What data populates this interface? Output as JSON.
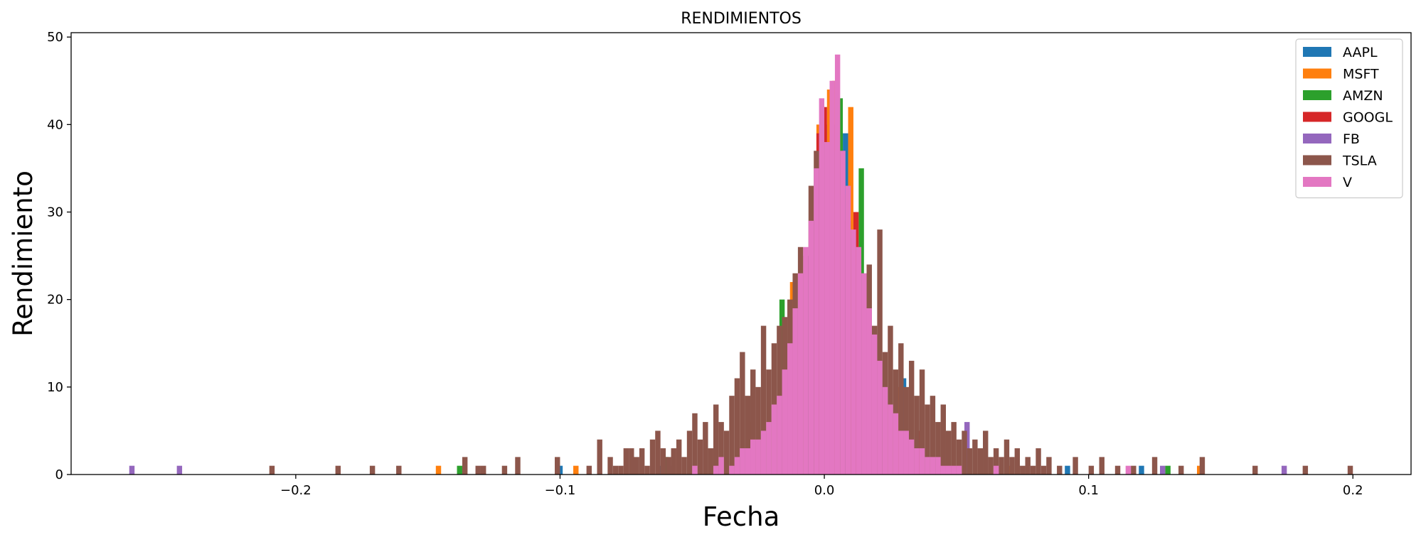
{
  "chart_data": {
    "type": "bar",
    "subtype": "overlaid histogram",
    "title": "RENDIMIENTOS",
    "xlabel": "Fecha",
    "ylabel": "Rendimiento",
    "xlim": [
      -0.285,
      0.222
    ],
    "ylim": [
      0,
      50.5
    ],
    "xticks": [
      -0.2,
      -0.1,
      0.0,
      0.1,
      0.2
    ],
    "xtick_labels": [
      "−0.2",
      "−0.1",
      "0.0",
      "0.1",
      "0.2"
    ],
    "yticks": [
      0,
      10,
      20,
      30,
      40,
      50
    ],
    "ytick_labels": [
      "0",
      "10",
      "20",
      "30",
      "40",
      "50"
    ],
    "grid": false,
    "legend_position": "top-right",
    "bin_width": 0.002,
    "series": [
      {
        "name": "AAPL",
        "color": "#1f77b4",
        "bins": [
          [
            -0.1,
            1
          ],
          [
            -0.062,
            1
          ],
          [
            -0.016,
            15
          ],
          [
            -0.006,
            25
          ],
          [
            0.0,
            40
          ],
          [
            0.008,
            39
          ],
          [
            0.03,
            11
          ],
          [
            0.092,
            1
          ],
          [
            0.12,
            1
          ]
        ]
      },
      {
        "name": "MSFT",
        "color": "#ff7f0e",
        "bins": [
          [
            -0.146,
            1
          ],
          [
            -0.094,
            1
          ],
          [
            -0.028,
            6
          ],
          [
            -0.012,
            22
          ],
          [
            -0.002,
            40
          ],
          [
            0.002,
            44
          ],
          [
            0.004,
            45
          ],
          [
            0.01,
            42
          ],
          [
            0.028,
            10
          ],
          [
            0.07,
            1
          ],
          [
            0.142,
            1
          ]
        ]
      },
      {
        "name": "AMZN",
        "color": "#2ca02c",
        "bins": [
          [
            -0.138,
            1
          ],
          [
            -0.06,
            2
          ],
          [
            -0.016,
            20
          ],
          [
            -0.004,
            29
          ],
          [
            0.006,
            43
          ],
          [
            0.014,
            35
          ],
          [
            0.022,
            13
          ],
          [
            0.13,
            1
          ]
        ]
      },
      {
        "name": "GOOGL",
        "color": "#d62728",
        "bins": [
          [
            -0.012,
            18
          ],
          [
            -0.002,
            39
          ],
          [
            0.0,
            42
          ],
          [
            0.004,
            40
          ],
          [
            0.012,
            30
          ],
          [
            0.036,
            5
          ]
        ]
      },
      {
        "name": "FB",
        "color": "#9467bd",
        "bins": [
          [
            -0.262,
            1
          ],
          [
            -0.244,
            1
          ],
          [
            -0.058,
            1
          ],
          [
            0.054,
            6
          ],
          [
            0.128,
            1
          ],
          [
            0.174,
            1
          ]
        ]
      },
      {
        "name": "TSLA",
        "color": "#8c564b",
        "bins": [
          [
            -0.209,
            1
          ],
          [
            -0.184,
            1
          ],
          [
            -0.171,
            1
          ],
          [
            -0.161,
            1
          ],
          [
            -0.136,
            2
          ],
          [
            -0.131,
            1
          ],
          [
            -0.129,
            1
          ],
          [
            -0.121,
            1
          ],
          [
            -0.116,
            2
          ],
          [
            -0.101,
            2
          ],
          [
            -0.089,
            1
          ],
          [
            -0.085,
            4
          ],
          [
            -0.081,
            2
          ],
          [
            -0.079,
            1
          ],
          [
            -0.077,
            1
          ],
          [
            -0.075,
            3
          ],
          [
            -0.073,
            3
          ],
          [
            -0.071,
            2
          ],
          [
            -0.069,
            3
          ],
          [
            -0.067,
            1
          ],
          [
            -0.065,
            4
          ],
          [
            -0.063,
            5
          ],
          [
            -0.061,
            3
          ],
          [
            -0.059,
            2
          ],
          [
            -0.057,
            3
          ],
          [
            -0.055,
            4
          ],
          [
            -0.053,
            2
          ],
          [
            -0.051,
            5
          ],
          [
            -0.049,
            7
          ],
          [
            -0.047,
            4
          ],
          [
            -0.045,
            6
          ],
          [
            -0.043,
            3
          ],
          [
            -0.041,
            8
          ],
          [
            -0.039,
            6
          ],
          [
            -0.037,
            5
          ],
          [
            -0.035,
            9
          ],
          [
            -0.033,
            11
          ],
          [
            -0.031,
            14
          ],
          [
            -0.029,
            9
          ],
          [
            -0.027,
            12
          ],
          [
            -0.025,
            10
          ],
          [
            -0.023,
            17
          ],
          [
            -0.021,
            12
          ],
          [
            -0.019,
            15
          ],
          [
            -0.017,
            17
          ],
          [
            -0.015,
            18
          ],
          [
            -0.013,
            20
          ],
          [
            -0.011,
            23
          ],
          [
            -0.009,
            26
          ],
          [
            -0.007,
            25
          ],
          [
            -0.005,
            33
          ],
          [
            -0.003,
            37
          ],
          [
            -0.001,
            39
          ],
          [
            0.001,
            38
          ],
          [
            0.003,
            37
          ],
          [
            0.005,
            36
          ],
          [
            0.007,
            32
          ],
          [
            0.009,
            29
          ],
          [
            0.011,
            27
          ],
          [
            0.013,
            24
          ],
          [
            0.015,
            21
          ],
          [
            0.017,
            24
          ],
          [
            0.019,
            17
          ],
          [
            0.021,
            28
          ],
          [
            0.023,
            14
          ],
          [
            0.025,
            17
          ],
          [
            0.027,
            12
          ],
          [
            0.029,
            15
          ],
          [
            0.031,
            10
          ],
          [
            0.033,
            13
          ],
          [
            0.035,
            9
          ],
          [
            0.037,
            12
          ],
          [
            0.039,
            8
          ],
          [
            0.041,
            9
          ],
          [
            0.043,
            6
          ],
          [
            0.045,
            8
          ],
          [
            0.047,
            5
          ],
          [
            0.049,
            6
          ],
          [
            0.051,
            4
          ],
          [
            0.053,
            5
          ],
          [
            0.055,
            3
          ],
          [
            0.057,
            4
          ],
          [
            0.059,
            3
          ],
          [
            0.061,
            5
          ],
          [
            0.063,
            2
          ],
          [
            0.065,
            3
          ],
          [
            0.067,
            2
          ],
          [
            0.069,
            4
          ],
          [
            0.071,
            2
          ],
          [
            0.073,
            3
          ],
          [
            0.075,
            1
          ],
          [
            0.077,
            2
          ],
          [
            0.079,
            1
          ],
          [
            0.081,
            3
          ],
          [
            0.083,
            1
          ],
          [
            0.085,
            2
          ],
          [
            0.089,
            1
          ],
          [
            0.095,
            2
          ],
          [
            0.101,
            1
          ],
          [
            0.105,
            2
          ],
          [
            0.111,
            1
          ],
          [
            0.117,
            1
          ],
          [
            0.125,
            2
          ],
          [
            0.135,
            1
          ],
          [
            0.143,
            2
          ],
          [
            0.163,
            1
          ],
          [
            0.182,
            1
          ],
          [
            0.199,
            1
          ]
        ]
      },
      {
        "name": "V",
        "color": "#e377c2",
        "bins": [
          [
            -0.049,
            1
          ],
          [
            -0.041,
            1
          ],
          [
            -0.039,
            2
          ],
          [
            -0.035,
            1
          ],
          [
            -0.033,
            2
          ],
          [
            -0.031,
            3
          ],
          [
            -0.029,
            3
          ],
          [
            -0.027,
            4
          ],
          [
            -0.025,
            4
          ],
          [
            -0.023,
            5
          ],
          [
            -0.021,
            6
          ],
          [
            -0.019,
            8
          ],
          [
            -0.017,
            9
          ],
          [
            -0.015,
            12
          ],
          [
            -0.013,
            15
          ],
          [
            -0.011,
            19
          ],
          [
            -0.009,
            23
          ],
          [
            -0.007,
            26
          ],
          [
            -0.005,
            29
          ],
          [
            -0.003,
            35
          ],
          [
            -0.001,
            43
          ],
          [
            0.001,
            38
          ],
          [
            0.003,
            45
          ],
          [
            0.005,
            48
          ],
          [
            0.007,
            37
          ],
          [
            0.009,
            33
          ],
          [
            0.011,
            28
          ],
          [
            0.013,
            26
          ],
          [
            0.015,
            23
          ],
          [
            0.017,
            19
          ],
          [
            0.019,
            16
          ],
          [
            0.021,
            13
          ],
          [
            0.023,
            10
          ],
          [
            0.025,
            8
          ],
          [
            0.027,
            7
          ],
          [
            0.029,
            5
          ],
          [
            0.031,
            5
          ],
          [
            0.033,
            4
          ],
          [
            0.035,
            3
          ],
          [
            0.037,
            3
          ],
          [
            0.039,
            2
          ],
          [
            0.041,
            2
          ],
          [
            0.043,
            2
          ],
          [
            0.045,
            1
          ],
          [
            0.047,
            1
          ],
          [
            0.049,
            1
          ],
          [
            0.051,
            1
          ],
          [
            0.065,
            1
          ],
          [
            0.115,
            1
          ]
        ]
      }
    ]
  }
}
